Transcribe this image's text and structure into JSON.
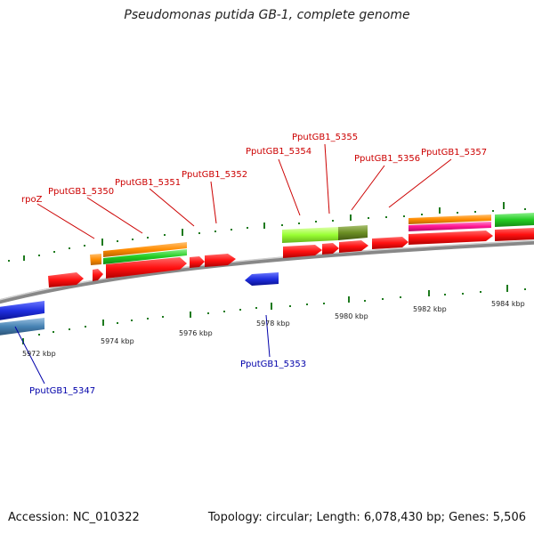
{
  "title": "Pseudomonas putida GB-1, complete genome",
  "footer": {
    "accession": "Accession: NC_010322",
    "info": "Topology: circular; Length: 6,078,430 bp; Genes: 5,506"
  },
  "axis": {
    "ticks": [
      "5972 kbp",
      "5974 kbp",
      "5976 kbp",
      "5978 kbp",
      "5980 kbp",
      "5982 kbp",
      "5984 kbp"
    ]
  },
  "gene_labels": {
    "forward": [
      "rpoZ",
      "PputGB1_5350",
      "PputGB1_5351",
      "PputGB1_5352",
      "PputGB1_5354",
      "PputGB1_5355",
      "PputGB1_5356",
      "PputGB1_5357"
    ],
    "reverse": [
      "PputGB1_5353",
      "PputGB1_5347"
    ]
  },
  "colors": {
    "forward_gene": "#ff1010",
    "reverse_gene": "#1f2fe0",
    "forward_label": "#cc0000",
    "reverse_label": "#0000aa",
    "backbone": "#888888",
    "tick": "#1e7a1e",
    "orange_feature": "#ff8c00",
    "green_feature": "#22cc22",
    "lime_feature": "#99ff33",
    "olive_feature": "#6b8e23",
    "magenta_feature": "#ff1493",
    "steel_feature": "#4682b4"
  }
}
